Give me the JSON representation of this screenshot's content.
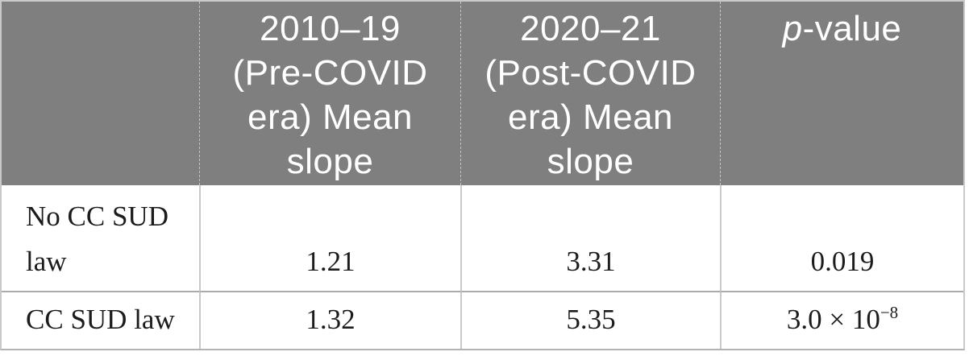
{
  "figure": {
    "header": {
      "empty": "",
      "pre_covid_lines": [
        "2010–19",
        "(Pre-COVID",
        "era) Mean",
        "slope"
      ],
      "post_covid_lines": [
        "2020–21",
        "(Post-COVID",
        "era) Mean",
        "slope"
      ],
      "p_value": {
        "italic": "p",
        "rest": "-value"
      }
    },
    "rows": [
      {
        "label_lines": [
          "No CC SUD",
          "law"
        ],
        "pre_covid_mean_slope": "1.21",
        "post_covid_mean_slope": "3.31",
        "p_value": "0.019"
      },
      {
        "label": "CC SUD law",
        "pre_covid_mean_slope": "1.32",
        "post_covid_mean_slope": "5.35",
        "p_value_base": "3.0 × 10",
        "p_value_exponent": "−8"
      }
    ],
    "colors": {
      "header_background": "#7f7f7f",
      "header_text": "#ffffff",
      "body_text": "#1c1c1c",
      "grid_line": "#c9c9c9",
      "row_divider": "#ababab"
    }
  }
}
